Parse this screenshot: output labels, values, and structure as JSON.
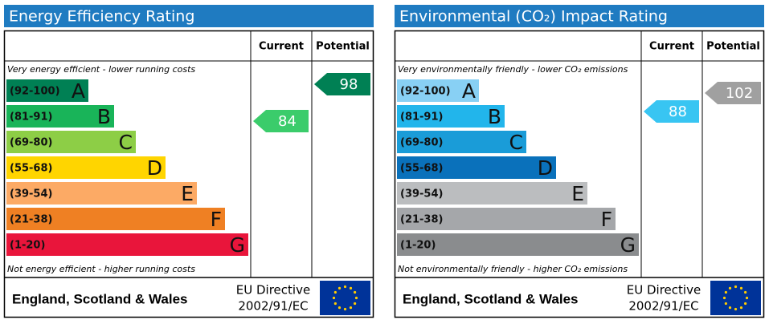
{
  "panels": [
    {
      "title": "Energy Efficiency Rating",
      "col_current": "Current",
      "col_potential": "Potential",
      "top_note": "Very energy efficient - lower running costs",
      "bottom_note": "Not energy efficient - higher running costs",
      "bands": [
        {
          "range": "(92-100)",
          "letter": "A",
          "color": "#008054"
        },
        {
          "range": "(81-91)",
          "letter": "B",
          "color": "#19b459"
        },
        {
          "range": "(69-80)",
          "letter": "C",
          "color": "#8dce46"
        },
        {
          "range": "(55-68)",
          "letter": "D",
          "color": "#ffd500"
        },
        {
          "range": "(39-54)",
          "letter": "E",
          "color": "#fcaa65"
        },
        {
          "range": "(21-38)",
          "letter": "F",
          "color": "#ef8023"
        },
        {
          "range": "(1-20)",
          "letter": "G",
          "color": "#e9153b"
        }
      ],
      "current": {
        "value": 84,
        "color": "#3bcc6b"
      },
      "potential": {
        "value": 98,
        "color": "#008054"
      },
      "footer": {
        "region": "England, Scotland & Wales",
        "directive": "EU Directive",
        "code": "2002/91/EC"
      }
    },
    {
      "title": "Environmental (CO₂) Impact Rating",
      "col_current": "Current",
      "col_potential": "Potential",
      "top_note": "Very environmentally friendly - lower CO₂ emissions",
      "bottom_note": "Not environmentally friendly - higher CO₂ emissions",
      "bands": [
        {
          "range": "(92-100)",
          "letter": "A",
          "color": "#88d0f4"
        },
        {
          "range": "(81-91)",
          "letter": "B",
          "color": "#22b5eb"
        },
        {
          "range": "(69-80)",
          "letter": "C",
          "color": "#1a9cd8"
        },
        {
          "range": "(55-68)",
          "letter": "D",
          "color": "#0a71bb"
        },
        {
          "range": "(39-54)",
          "letter": "E",
          "color": "#bbbdbf"
        },
        {
          "range": "(21-38)",
          "letter": "F",
          "color": "#a5a7aa"
        },
        {
          "range": "(1-20)",
          "letter": "G",
          "color": "#8a8c8e"
        }
      ],
      "current": {
        "value": 88,
        "color": "#38c5f2"
      },
      "potential": {
        "value": 102,
        "color": "#a0a0a0"
      },
      "footer": {
        "region": "England, Scotland & Wales",
        "directive": "EU Directive",
        "code": "2002/91/EC"
      }
    }
  ]
}
